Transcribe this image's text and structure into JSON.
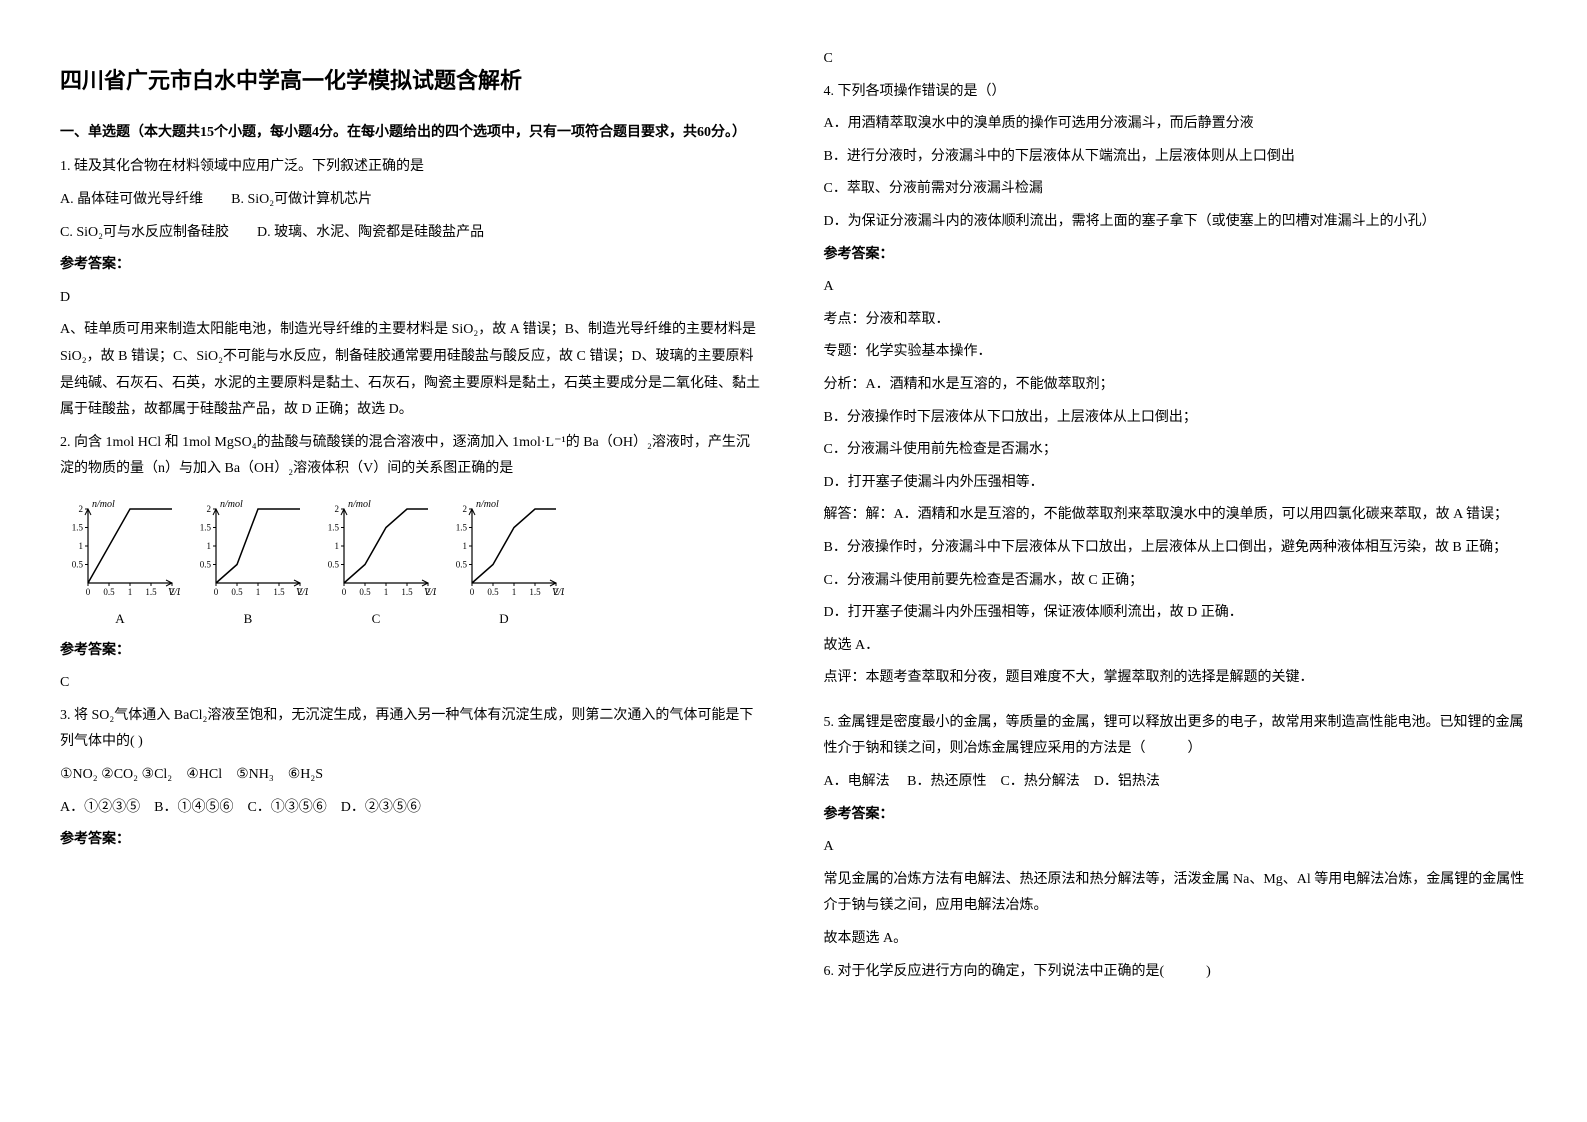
{
  "title": "四川省广元市白水中学高一化学模拟试题含解析",
  "part1_head": "一、单选题（本大题共15个小题，每小题4分。在每小题给出的四个选项中，只有一项符合题目要求，共60分。）",
  "q1": {
    "stem": "1. 硅及其化合物在材料领域中应用广泛。下列叙述正确的是",
    "optA": "A. 晶体硅可做光导纤维",
    "optB": "B. SiO₂可做计算机芯片",
    "optC": "C. SiO₂可与水反应制备硅胶",
    "optD": "D. 玻璃、水泥、陶瓷都是硅酸盐产品",
    "ans_label": "参考答案：",
    "ans": "D",
    "exp": "A、硅单质可用来制造太阳能电池，制造光导纤维的主要材料是 SiO₂，故 A 错误；B、制造光导纤维的主要材料是 SiO₂，故 B 错误；C、SiO₂不可能与水反应，制备硅胶通常要用硅酸盐与酸反应，故 C 错误；D、玻璃的主要原料是纯碱、石灰石、石英，水泥的主要原料是黏土、石灰石，陶瓷主要原料是黏土，石英主要成分是二氧化硅、黏土属于硅酸盐，故都属于硅酸盐产品，故 D 正确；故选 D。"
  },
  "q2": {
    "stem": "2. 向含 1mol HCl 和 1mol MgSO₄的盐酸与硫酸镁的混合溶液中，逐滴加入 1mol·L⁻¹的 Ba（OH）₂溶液时，产生沉淀的物质的量（n）与加入 Ba（OH）₂溶液体积（V）间的关系图正确的是",
    "ans_label": "参考答案：",
    "ans": "C",
    "charts": {
      "ylabel": "n/mol",
      "xlabel_suffix": "V/L",
      "yticks": [
        0.5,
        1,
        1.5,
        2
      ],
      "xticks": [
        0,
        0.5,
        1,
        1.5,
        2
      ],
      "axis_color": "#000000",
      "line_color": "#000000",
      "bg": "#ffffff",
      "width": 120,
      "height": 110,
      "labels": [
        "A",
        "B",
        "C",
        "D"
      ],
      "series": {
        "A": [
          [
            0,
            0
          ],
          [
            0.5,
            1
          ],
          [
            1,
            2
          ],
          [
            1.5,
            2
          ],
          [
            2,
            2
          ]
        ],
        "B": [
          [
            0,
            0
          ],
          [
            0.5,
            0.5
          ],
          [
            1,
            2
          ],
          [
            1.5,
            2
          ],
          [
            2,
            2
          ]
        ],
        "C": [
          [
            0,
            0
          ],
          [
            0.5,
            0.5
          ],
          [
            1,
            1.5
          ],
          [
            1.5,
            2
          ],
          [
            2,
            2
          ]
        ],
        "D": [
          [
            0,
            0
          ],
          [
            0.5,
            0.5
          ],
          [
            1,
            1.5
          ],
          [
            1.5,
            2
          ],
          [
            2,
            2
          ]
        ]
      }
    }
  },
  "q3": {
    "stem_a": "3. 将 SO₂气体通入 BaCl₂溶液至饱和，无沉淀生成，再通入另一种气体有沉淀生成，则第二次通入的气体可能是下列气体中的(   )",
    "opts_line": "①NO₂ ②CO₂ ③Cl₂　④HCl　⑤NH₃　⑥H₂S",
    "choices": "A．①②③⑤　B．①④⑤⑥　C．①③⑤⑥　D．②③⑤⑥",
    "ans_label": "参考答案：",
    "ans": "C"
  },
  "q4": {
    "stem": "4. 下列各项操作错误的是（）",
    "optA": "A．用酒精萃取溴水中的溴单质的操作可选用分液漏斗，而后静置分液",
    "optB": "B．进行分液时，分液漏斗中的下层液体从下端流出，上层液体则从上口倒出",
    "optC": "C．萃取、分液前需对分液漏斗检漏",
    "optD": "D．为保证分液漏斗内的液体顺利流出，需将上面的塞子拿下（或使塞上的凹槽对准漏斗上的小孔）",
    "ans_label": "参考答案：",
    "ans": "A",
    "kp_label": "考点：",
    "kp": "分液和萃取．",
    "zt_label": "专题：",
    "zt": "化学实验基本操作．",
    "fx_label": "分析：",
    "fxA": "A．酒精和水是互溶的，不能做萃取剂；",
    "fxB": "B．分液操作时下层液体从下口放出，上层液体从上口倒出；",
    "fxC": "C．分液漏斗使用前先检查是否漏水；",
    "fxD": "D．打开塞子使漏斗内外压强相等．",
    "jd_label": "解答：",
    "jdA": "解：A．酒精和水是互溶的，不能做萃取剂来萃取溴水中的溴单质，可以用四氯化碳来萃取，故 A 错误；",
    "jdB": "B．分液操作时，分液漏斗中下层液体从下口放出，上层液体从上口倒出，避免两种液体相互污染，故 B 正确；",
    "jdC": "C．分液漏斗使用前要先检查是否漏水，故 C 正确；",
    "jdD": "D．打开塞子使漏斗内外压强相等，保证液体顺利流出，故 D 正确．",
    "jd_end": "故选 A．",
    "dp_label": "点评：",
    "dp": "本题考查萃取和分夜，题目难度不大，掌握萃取剂的选择是解题的关键．"
  },
  "q5": {
    "stem_a": "5. 金属锂是密度最小的金属，等质量的金属，锂可以释放出更多的电子，故常用来制造高性能电池。已知锂的金属性介于钠和镁之间，则冶炼金属锂应采用的方法是（　　　）",
    "choices": "A．电解法　 B．热还原性　C．热分解法　D．铝热法",
    "ans_label": "参考答案：",
    "ans": "A",
    "exp1": "常见金属的冶炼方法有电解法、热还原法和热分解法等，活泼金属 Na、Mg、Al 等用电解法冶炼，金属锂的金属性介于钠与镁之间，应用电解法冶炼。",
    "exp2": "故本题选 A。"
  },
  "q6": {
    "stem": "6. 对于化学反应进行方向的确定，下列说法中正确的是(　　　)"
  }
}
